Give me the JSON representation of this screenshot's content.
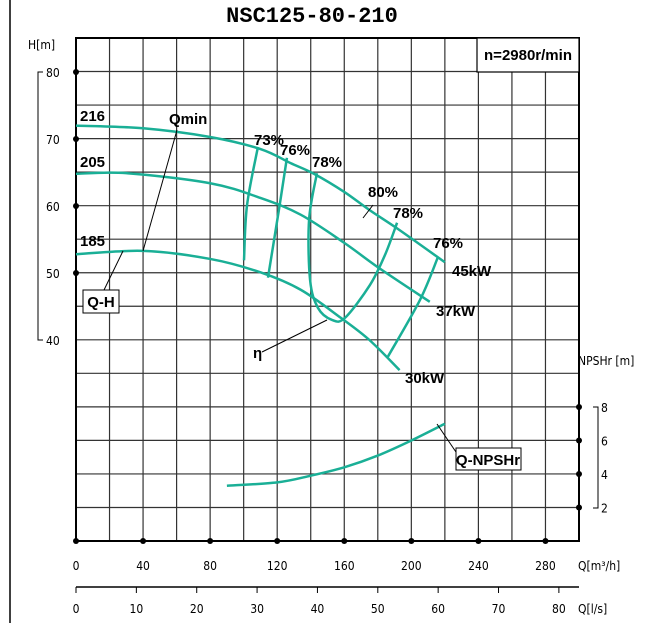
{
  "chart_data": {
    "type": "line",
    "title": "NSC125-80-210",
    "speed_label": "n=2980r/min",
    "xlabel": "Q[m³/h]",
    "xlabel2": "Q[l/s]",
    "ylabel": "H[m]",
    "ylabel2": "NPSHr [m]",
    "xlim": [
      0,
      300
    ],
    "ylim": [
      35,
      85
    ],
    "y2lim": [
      0,
      8
    ],
    "grid": true,
    "x_ticks": [
      "0",
      "40",
      "80",
      "120",
      "160",
      "200",
      "240",
      "280"
    ],
    "x2_ticks": [
      "0",
      "10",
      "20",
      "30",
      "40",
      "50",
      "60",
      "70",
      "80"
    ],
    "y_ticks": [
      "80",
      "70",
      "60",
      "50",
      "40"
    ],
    "y2_ticks": [
      "8",
      "6",
      "4",
      "2"
    ],
    "head_curves": [
      {
        "name": "216",
        "points": [
          [
            0,
            72
          ],
          [
            40,
            71.6
          ],
          [
            80,
            70.3
          ],
          [
            110,
            68.5
          ],
          [
            128,
            66.4
          ],
          [
            142,
            64.8
          ],
          [
            160,
            62.1
          ],
          [
            175,
            59.4
          ],
          [
            193,
            56.4
          ],
          [
            220,
            51.6
          ]
        ]
      },
      {
        "name": "205",
        "points": [
          [
            0,
            64.8
          ],
          [
            30,
            64.9
          ],
          [
            80,
            63.4
          ],
          [
            110,
            61.2
          ],
          [
            134,
            58.7
          ],
          [
            160,
            54.5
          ],
          [
            181,
            50.7
          ],
          [
            211,
            45.7
          ]
        ]
      },
      {
        "name": "185",
        "points": [
          [
            0,
            52.8
          ],
          [
            40,
            53.3
          ],
          [
            80,
            52.1
          ],
          [
            110,
            50.1
          ],
          [
            134,
            47.5
          ],
          [
            158,
            43.3
          ],
          [
            175,
            40
          ],
          [
            193,
            35.5
          ]
        ]
      }
    ],
    "efficiency_curves": [
      {
        "name": "73%",
        "points": [
          [
            108.5,
            68.8
          ],
          [
            102,
            60.1
          ],
          [
            100.2,
            51.9
          ]
        ]
      },
      {
        "name": "76%",
        "points": [
          [
            125.8,
            67.2
          ],
          [
            121,
            59.4
          ],
          [
            114.5,
            49.3
          ]
        ]
      },
      {
        "name": "78%",
        "points": [
          [
            143.7,
            64.9
          ],
          [
            139,
            57.9
          ],
          [
            139.6,
            49
          ],
          [
            144.3,
            44.8
          ],
          [
            152.7,
            43
          ],
          [
            160.4,
            43.3
          ],
          [
            175.3,
            48.2
          ],
          [
            184.3,
            52.7
          ],
          [
            191.5,
            57.5
          ]
        ]
      },
      {
        "name": "76%",
        "points": [
          [
            215.9,
            52.4
          ],
          [
            205.2,
            46
          ],
          [
            186,
            37.5
          ]
        ]
      }
    ],
    "efficiency_labels": [
      "73%",
      "76%",
      "78%",
      "80%",
      "78%",
      "76%"
    ],
    "power_labels": [
      "45kW",
      "37kW",
      "30kW"
    ],
    "npshr_curve": {
      "name": "Q-NPSHr",
      "points": [
        [
          90,
          3.3
        ],
        [
          120,
          3.5
        ],
        [
          140,
          3.9
        ],
        [
          160,
          4.4
        ],
        [
          180,
          5.1
        ],
        [
          200,
          6.0
        ],
        [
          220,
          7.0
        ]
      ]
    },
    "annotations": {
      "qmin": "Qmin",
      "qh": "Q-H",
      "eta": "η",
      "npsh": "Q-NPSHr"
    },
    "curve_color": "#1aaf96"
  }
}
